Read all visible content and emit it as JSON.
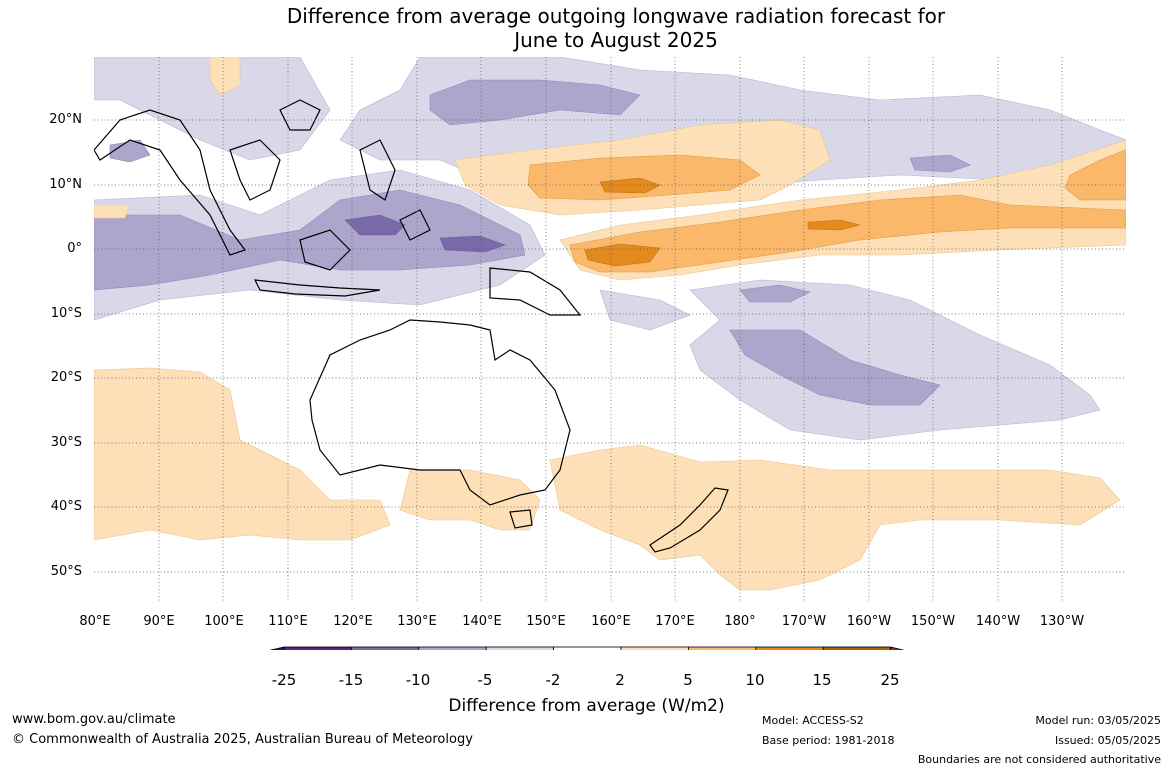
{
  "title_line1": "Difference from average outgoing longwave radiation forecast for",
  "title_line2": "June to August 2025",
  "lat_labels": [
    "20°N",
    "10°N",
    "0°",
    "10°S",
    "20°S",
    "30°S",
    "40°S",
    "50°S"
  ],
  "lon_labels": [
    "80°E",
    "90°E",
    "100°E",
    "110°E",
    "120°E",
    "130°E",
    "140°E",
    "150°E",
    "160°E",
    "170°E",
    "180°",
    "170°W",
    "160°W",
    "150°W",
    "140°W",
    "130°W"
  ],
  "colorbar": {
    "ticks": [
      "-25",
      "-15",
      "-10",
      "-5",
      "-2",
      "2",
      "5",
      "10",
      "15",
      "25"
    ],
    "colors": [
      "#3f0f6b",
      "#56238a",
      "#7b6aaa",
      "#aca6cc",
      "#d8d8e9",
      "#ffffff",
      "#fde0b8",
      "#fbb76a",
      "#e38a1f",
      "#b05b0c",
      "#7a3c08"
    ],
    "label": "Difference from average (W/m2)"
  },
  "footer": {
    "website": "www.bom.gov.au/climate",
    "copyright": "© Commonwealth of Australia 2025, Australian Bureau of Meteorology",
    "model": "Model: ACCESS-S2",
    "base_period": "Base period: 1981-2018",
    "model_run": "Model run: 03/05/2025",
    "issued": "Issued: 05/05/2025",
    "disclaimer": "Boundaries are not considered authoritative"
  }
}
